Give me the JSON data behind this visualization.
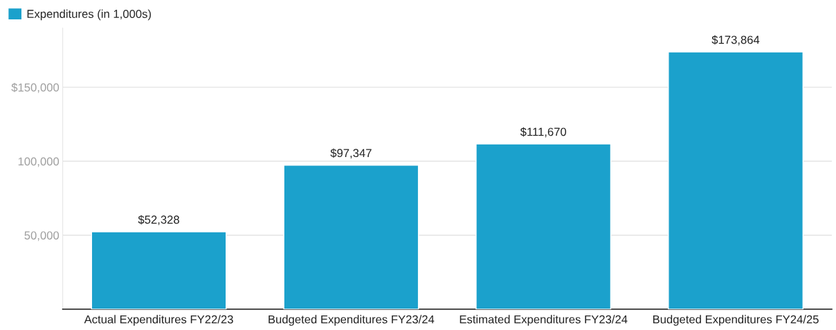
{
  "chart_data": {
    "type": "bar",
    "categories": [
      "Actual Expenditures FY22/23",
      "Budgeted Expenditures FY23/24",
      "Estimated Expenditures FY23/24",
      "Budgeted Expenditures FY24/25"
    ],
    "series": [
      {
        "name": "Expenditures (in 1,000s)",
        "color": "#1ba1cc",
        "values": [
          52328,
          97347,
          111670,
          173864
        ],
        "value_labels": [
          "$52,328",
          "$97,347",
          "$111,670",
          "$173,864"
        ]
      }
    ],
    "ylim": [
      0,
      190000
    ],
    "yticks": [
      {
        "value": 50000,
        "label": "50,000"
      },
      {
        "value": 100000,
        "label": "100,000"
      },
      {
        "value": 150000,
        "label": "$150,000"
      }
    ],
    "grid": "y",
    "legend": "top left"
  }
}
